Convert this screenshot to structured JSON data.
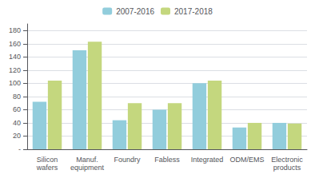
{
  "chart_data": {
    "type": "bar",
    "categories": [
      "Silicon\nwafers",
      "Manuf.\nequipment",
      "Foundry",
      "Fabless",
      "Integrated",
      "ODM/EMS",
      "Electronic\nproducts"
    ],
    "series": [
      {
        "name": "2007-2016",
        "color": "#92CDDC",
        "values": [
          72,
          150,
          44,
          60,
          100,
          33,
          40
        ]
      },
      {
        "name": "2017-2018",
        "color": "#C4D77E",
        "values": [
          104,
          163,
          70,
          70,
          104,
          40,
          39
        ]
      }
    ],
    "ylim": [
      0,
      190
    ],
    "yticks": [
      {
        "value": 0,
        "label": "-"
      },
      20,
      40,
      60,
      80,
      100,
      120,
      140,
      160,
      180
    ],
    "grid": true,
    "legend": "top"
  }
}
